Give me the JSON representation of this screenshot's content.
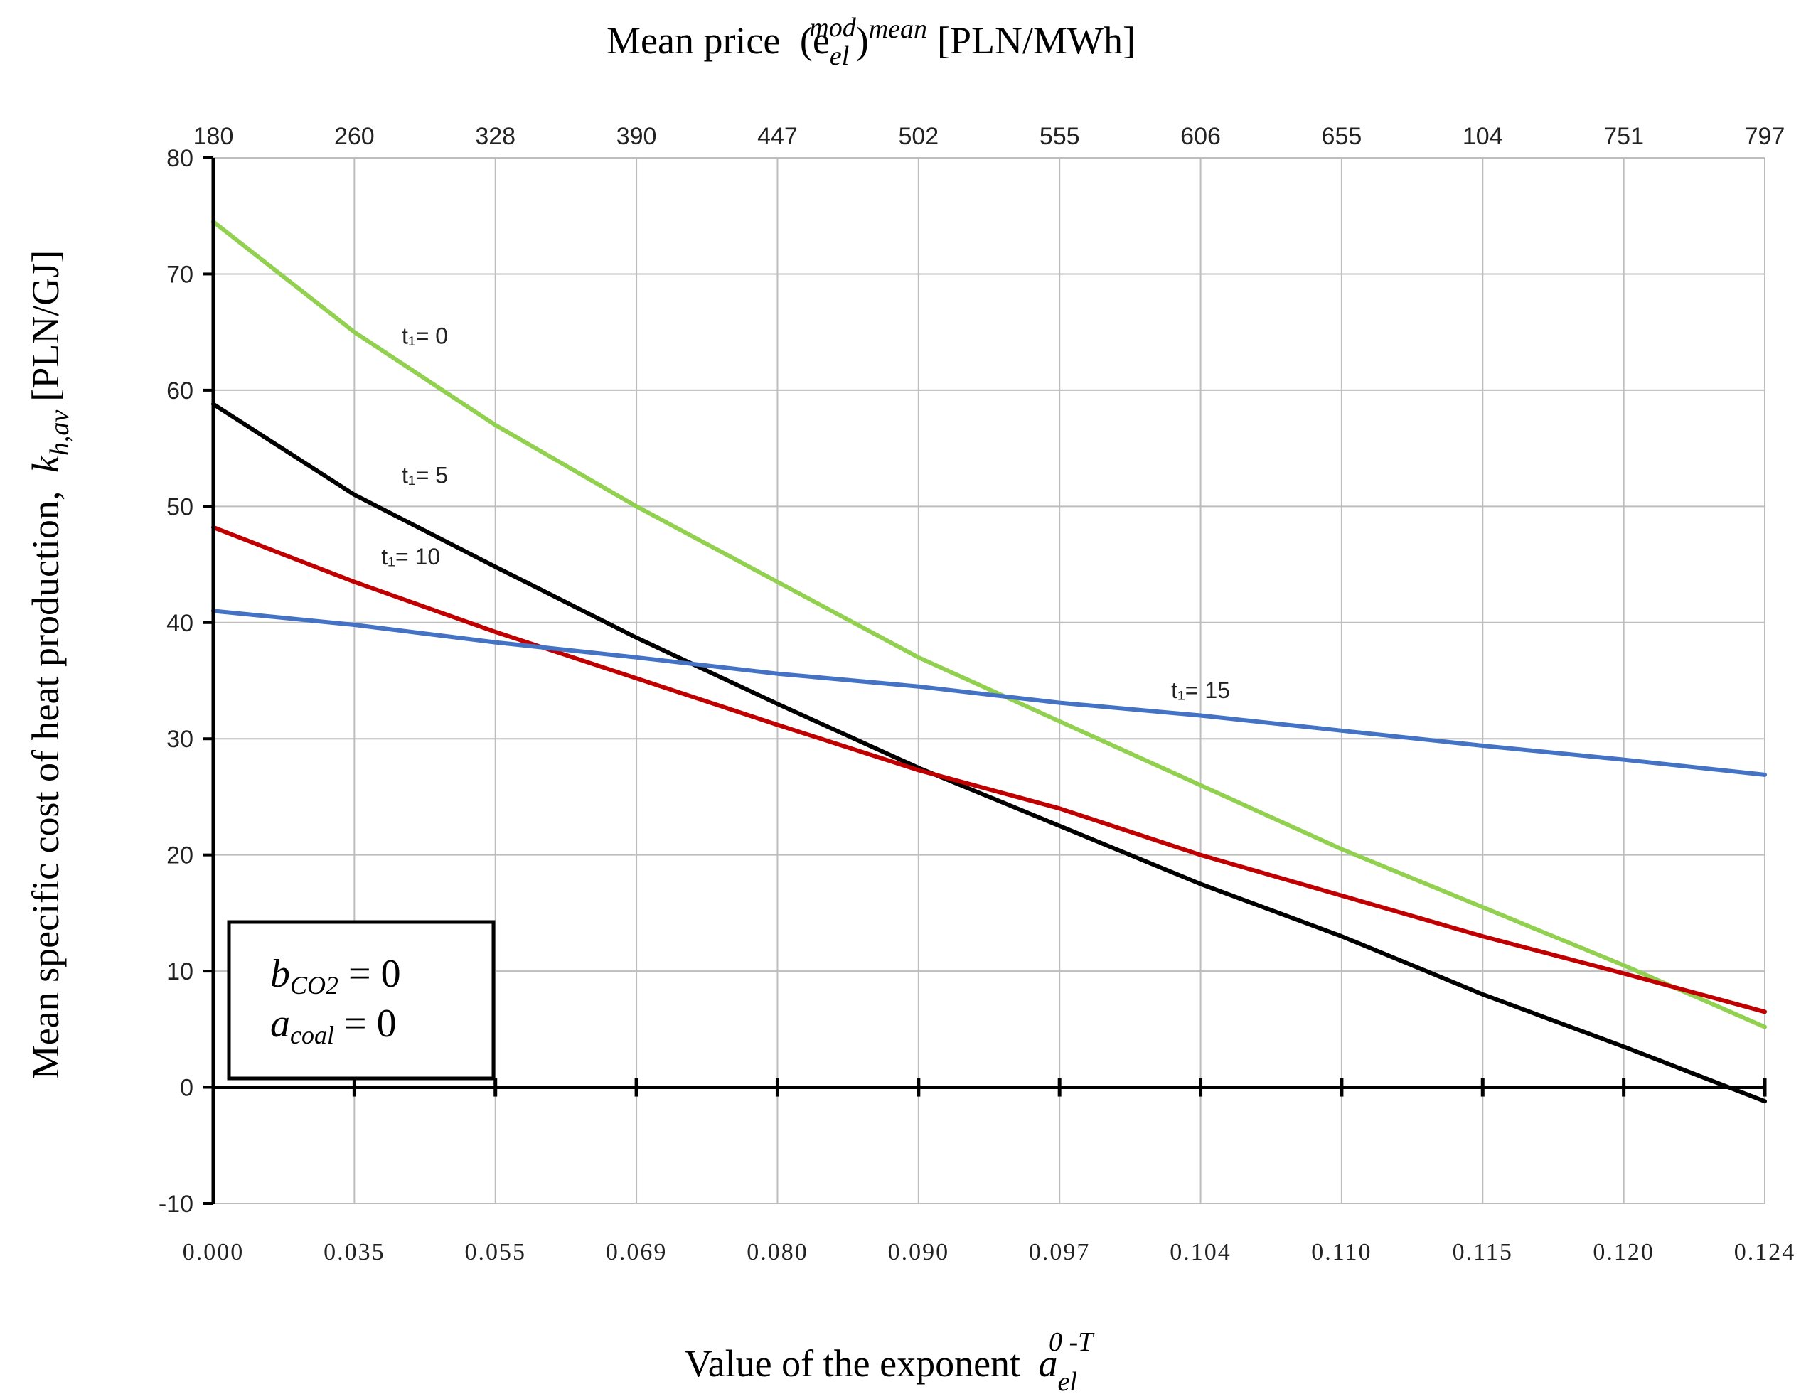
{
  "chart_data": {
    "type": "line",
    "title": "",
    "top_axis": {
      "title": "Mean price",
      "symbol_base": "(e",
      "symbol_sup": "mod",
      "symbol_sub": "el",
      "symbol_close": ")",
      "symbol_outer_sup": "mean",
      "unit": "[PLN/MWh]",
      "tick_labels": [
        "180",
        "260",
        "328",
        "390",
        "447",
        "502",
        "555",
        "606",
        "655",
        "104",
        "751",
        "797"
      ]
    },
    "x_axis": {
      "title": "Value of the exponent",
      "symbol_base": "a",
      "symbol_sup": "0 -T",
      "symbol_sub": "el",
      "tick_labels": [
        "0.000",
        "0.035",
        "0.055",
        "0.069",
        "0.080",
        "0.090",
        "0.097",
        "0.104",
        "0.110",
        "0.115",
        "0.120",
        "0.124"
      ]
    },
    "y_axis": {
      "title": "Mean specific cost of heat production,",
      "symbol_base": "k",
      "symbol_sub": "h,av",
      "unit": "[PLN/GJ]",
      "ylim": [
        -10,
        80
      ],
      "ticks": [
        -10,
        0,
        10,
        20,
        30,
        40,
        50,
        60,
        70,
        80
      ]
    },
    "grid": true,
    "series": [
      {
        "name": "t₁= 0",
        "color": "#92d050",
        "label_at_index": 1.5,
        "label_value": 64,
        "values": [
          74.5,
          65.0,
          57.0,
          50.0,
          43.5,
          37.0,
          31.5,
          26.0,
          20.5,
          15.5,
          10.5,
          5.2
        ]
      },
      {
        "name": "t₁= 5",
        "color": "#000000",
        "label_at_index": 1.5,
        "label_value": 52,
        "values": [
          58.8,
          51.0,
          44.8,
          38.7,
          33.0,
          27.5,
          22.5,
          17.5,
          13.0,
          8.0,
          3.5,
          -1.2
        ]
      },
      {
        "name": "t₁= 10",
        "color": "#c00000",
        "label_at_index": 1.4,
        "label_value": 45,
        "values": [
          48.2,
          43.5,
          39.2,
          35.2,
          31.2,
          27.3,
          24.0,
          20.0,
          16.5,
          13.0,
          9.8,
          6.5
        ]
      },
      {
        "name": "t₁= 15",
        "color": "#4472c4",
        "label_at_index": 7.0,
        "label_value": 33.5,
        "values": [
          41.0,
          39.8,
          38.3,
          37.0,
          35.6,
          34.5,
          33.1,
          32.0,
          30.7,
          29.4,
          28.2,
          26.9
        ]
      }
    ],
    "annotation_box": {
      "line1_base": "b",
      "line1_sub": "CO2",
      "line1_rest": " = 0",
      "line2_base": "a",
      "line2_sub": "coal",
      "line2_rest": " = 0"
    }
  }
}
